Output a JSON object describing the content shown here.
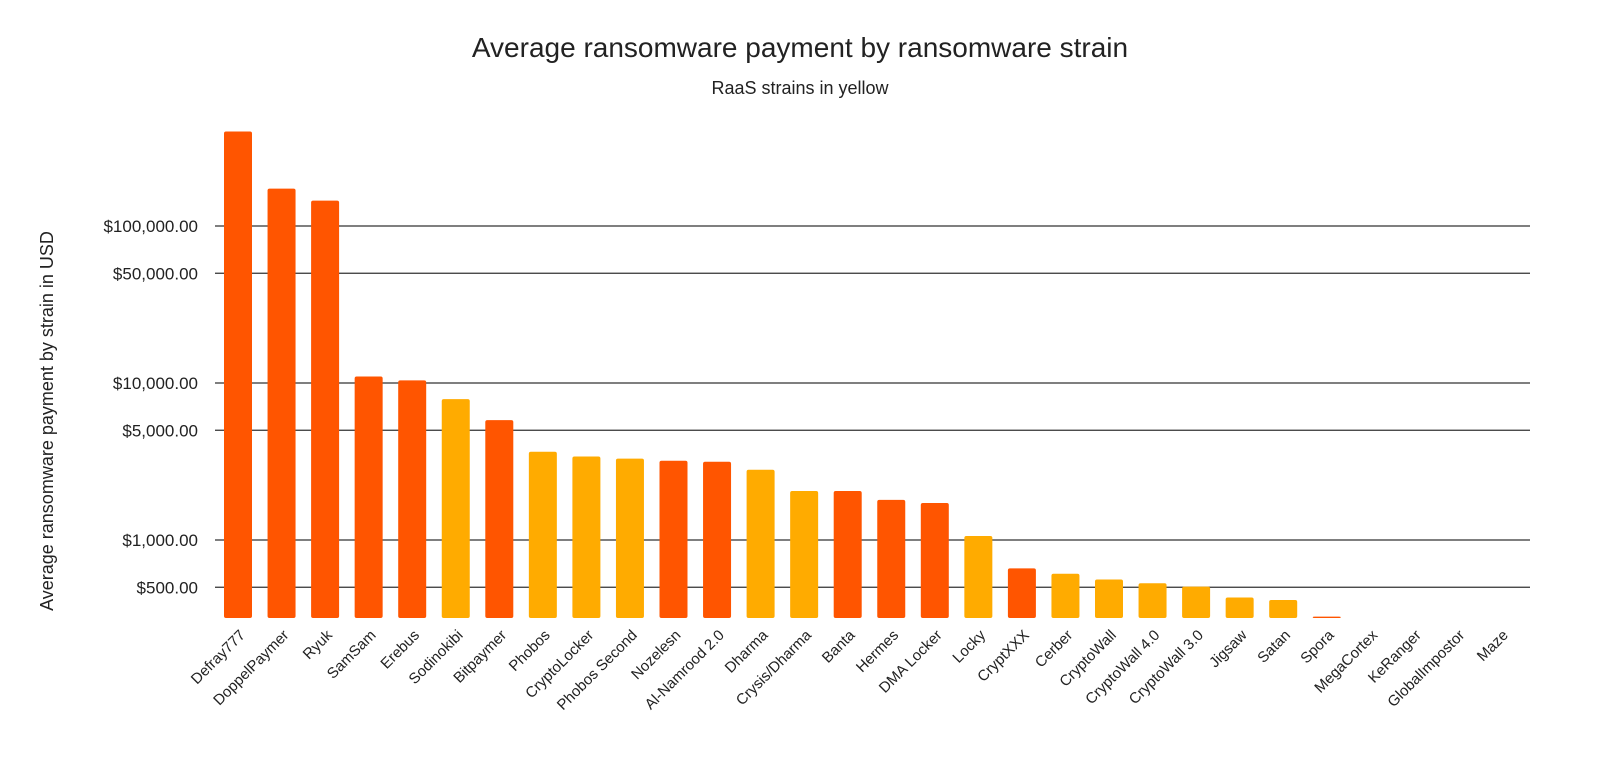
{
  "chart_data": {
    "type": "bar",
    "title": "Average ransomware payment by ransomware strain",
    "subtitle": "RaaS strains in yellow",
    "xlabel": "",
    "ylabel": "Average ransomware payment by strain in USD",
    "yscale": "log",
    "ylim": [
      300,
      500000
    ],
    "grid": true,
    "yticks": [
      500,
      1000,
      5000,
      10000,
      50000,
      100000
    ],
    "ytick_labels": [
      "$500.00",
      "$1,000.00",
      "$5,000.00",
      "$10,000.00",
      "$50,000.00",
      "$100,000.00"
    ],
    "colors": {
      "raas": "#FFAB00",
      "non_raas": "#FF5500",
      "grid": "#333333"
    },
    "bars": [
      {
        "category": "Defray777",
        "value": 400000,
        "raas": false
      },
      {
        "category": "DoppelPaymer",
        "value": 173000,
        "raas": false
      },
      {
        "category": "Ryuk",
        "value": 145000,
        "raas": false
      },
      {
        "category": "SamSam",
        "value": 11000,
        "raas": false
      },
      {
        "category": "Erebus",
        "value": 10400,
        "raas": false
      },
      {
        "category": "Sodinokibi",
        "value": 7900,
        "raas": true
      },
      {
        "category": "Bitpaymer",
        "value": 5800,
        "raas": false
      },
      {
        "category": "Phobos",
        "value": 3650,
        "raas": true
      },
      {
        "category": "CryptoLocker",
        "value": 3400,
        "raas": true
      },
      {
        "category": "Phobos Second",
        "value": 3300,
        "raas": true
      },
      {
        "category": "Nozelesn",
        "value": 3200,
        "raas": false
      },
      {
        "category": "Al-Namrood 2.0",
        "value": 3150,
        "raas": false
      },
      {
        "category": "Dharma",
        "value": 2800,
        "raas": true
      },
      {
        "category": "Crysis/Dharma",
        "value": 2050,
        "raas": true
      },
      {
        "category": "Banta",
        "value": 2050,
        "raas": false
      },
      {
        "category": "Hermes",
        "value": 1800,
        "raas": false
      },
      {
        "category": "DMA Locker",
        "value": 1720,
        "raas": false
      },
      {
        "category": "Locky",
        "value": 1060,
        "raas": true
      },
      {
        "category": "CryptXXX",
        "value": 660,
        "raas": false
      },
      {
        "category": "Cerber",
        "value": 610,
        "raas": true
      },
      {
        "category": "CryptoWall",
        "value": 560,
        "raas": true
      },
      {
        "category": "CryptoWall 4.0",
        "value": 530,
        "raas": true
      },
      {
        "category": "CryptoWall 3.0",
        "value": 505,
        "raas": true
      },
      {
        "category": "Jigsaw",
        "value": 430,
        "raas": true
      },
      {
        "category": "Satan",
        "value": 415,
        "raas": true
      },
      {
        "category": "Spora",
        "value": 325,
        "raas": false
      },
      {
        "category": "MegaCortex",
        "value": 310,
        "raas": true
      },
      {
        "category": "KeRanger",
        "value": 300,
        "raas": true
      },
      {
        "category": "GlobalImpostor",
        "value": 300,
        "raas": true
      },
      {
        "category": "Maze",
        "value": 300,
        "raas": true
      }
    ]
  }
}
